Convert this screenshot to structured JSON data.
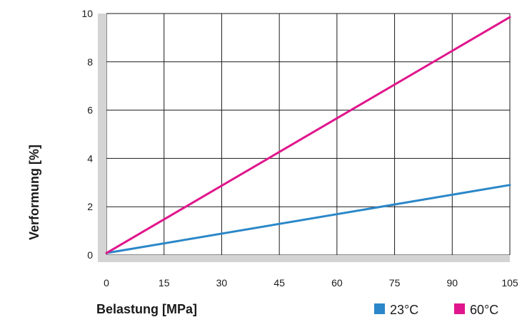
{
  "chart_data": {
    "type": "line",
    "title": "",
    "xlabel": "Belastung [MPa]",
    "ylabel": "Verformung [%]",
    "xlim": [
      0,
      105
    ],
    "ylim": [
      0,
      10
    ],
    "x_ticks": [
      "0",
      "15",
      "30",
      "45",
      "60",
      "75",
      "90",
      "105"
    ],
    "y_ticks": [
      "0",
      "2",
      "4",
      "6",
      "8",
      "10"
    ],
    "grid": true,
    "legend_position": "bottom-right",
    "series": [
      {
        "name": "23°C",
        "color": "#2b87c8",
        "x": [
          0,
          105
        ],
        "y": [
          0.08,
          2.9
        ]
      },
      {
        "name": "60°C",
        "color": "#e0168c",
        "x": [
          0,
          105
        ],
        "y": [
          0.08,
          9.85
        ]
      }
    ]
  }
}
